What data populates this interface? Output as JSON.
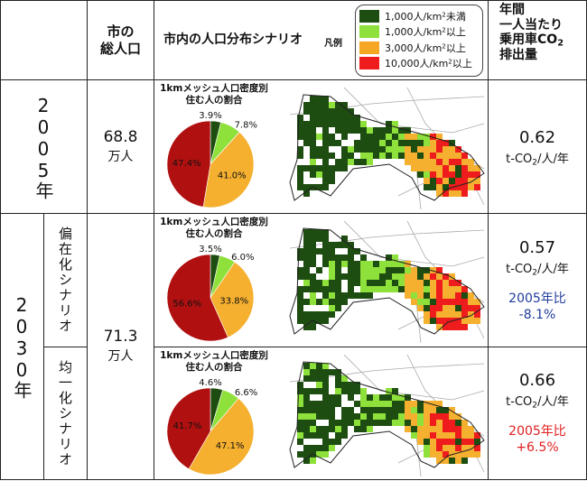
{
  "header": {
    "pop_label_line1": "市の",
    "pop_label_line2": "総人口",
    "scenario_label": "市内の人口分布シナリオ",
    "legend_label": "凡例",
    "co2_line1": "年間",
    "co2_line2": "一人当たり",
    "co2_line3": "乗用車CO",
    "co2_sub": "2",
    "co2_line4": "排出量"
  },
  "legend": [
    {
      "label_pre": "1,000人/km",
      "sup": "2",
      "label_post": "未満",
      "color": "#1e4d12"
    },
    {
      "label_pre": "1,000人/km",
      "sup": "2",
      "label_post": "以上",
      "color": "#8ee03a"
    },
    {
      "label_pre": "3,000人/km",
      "sup": "2",
      "label_post": "以上",
      "color": "#f5a623"
    },
    {
      "label_pre": "10,000人/km",
      "sup": "2",
      "label_post": "以上",
      "color": "#ee1c1c"
    }
  ],
  "pie_colors": [
    "#1e4d12",
    "#8ee03a",
    "#f5b030",
    "#b01010"
  ],
  "pie_title_line1": "1kmメッシュ人口密度別",
  "pie_title_line2": "住む人の割合",
  "rows": [
    {
      "year": "2005年",
      "population": "68.8",
      "pop_unit": "万人",
      "pie": [
        {
          "value": 3.9,
          "label": "3.9%"
        },
        {
          "value": 7.8,
          "label": "7.8%"
        },
        {
          "value": 41.0,
          "label": "41.0%"
        },
        {
          "value": 47.4,
          "label": "47.4%"
        }
      ],
      "co2": "0.62",
      "co2_unit_pre": "t-CO",
      "co2_unit_sub": "2",
      "co2_unit_post": "/人/年"
    },
    {
      "scenario": "偏在化シナリオ",
      "pie": [
        {
          "value": 3.5,
          "label": "3.5%"
        },
        {
          "value": 6.0,
          "label": "6.0%"
        },
        {
          "value": 33.8,
          "label": "33.8%"
        },
        {
          "value": 56.6,
          "label": "56.6%"
        }
      ],
      "co2": "0.57",
      "co2_unit_pre": "t-CO",
      "co2_unit_sub": "2",
      "co2_unit_post": "/人/年",
      "compare_line1": "2005年比",
      "compare_line2": "-8.1%",
      "compare_color": "#1f3d9c"
    },
    {
      "scenario": "均一化シナリオ",
      "pie": [
        {
          "value": 4.6,
          "label": "4.6%"
        },
        {
          "value": 6.6,
          "label": "6.6%"
        },
        {
          "value": 47.1,
          "label": "47.1%"
        },
        {
          "value": 41.7,
          "label": "41.7%"
        }
      ],
      "co2": "0.66",
      "co2_unit_pre": "t-CO",
      "co2_unit_sub": "2",
      "co2_unit_post": "/人/年",
      "compare_line1": "2005年比",
      "compare_line2": "+6.5%",
      "compare_color": "#e02020"
    }
  ],
  "year_2030": "2030年",
  "population_2030": "71.3",
  "pop_unit_2030": "万人"
}
